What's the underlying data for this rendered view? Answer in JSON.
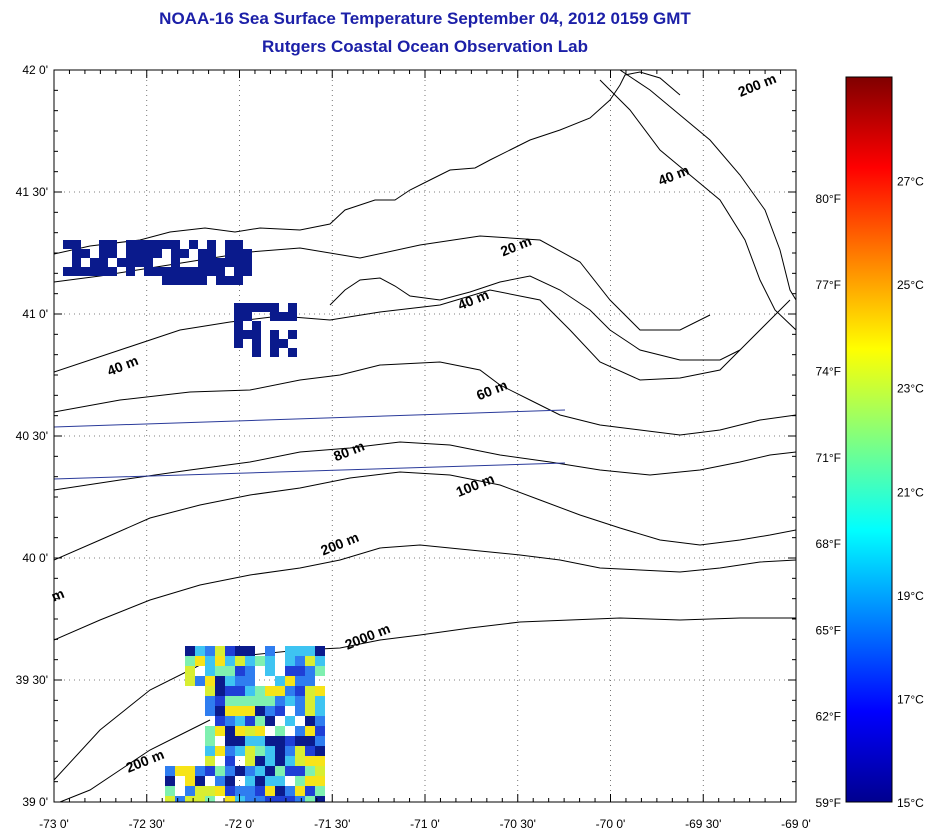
{
  "header": {
    "title": "NOAA-16 Sea Surface Temperature September 04, 2012 0159 GMT",
    "subtitle": "Rutgers Coastal Ocean Observation Lab"
  },
  "map": {
    "lon_range": [
      -73,
      -69
    ],
    "lat_range": [
      39,
      42
    ],
    "lon_ticks": [
      {
        "value": -73.0,
        "label": "-73 0'"
      },
      {
        "value": -72.5,
        "label": "-72 30'"
      },
      {
        "value": -72.0,
        "label": "-72 0'"
      },
      {
        "value": -71.5,
        "label": "-71 30'"
      },
      {
        "value": -71.0,
        "label": "-71 0'"
      },
      {
        "value": -70.5,
        "label": "-70 30'"
      },
      {
        "value": -70.0,
        "label": "-70 0'"
      },
      {
        "value": -69.5,
        "label": "-69 30'"
      },
      {
        "value": -69.0,
        "label": "-69 0'"
      }
    ],
    "lat_ticks": [
      {
        "value": 42.0,
        "label": "42 0'"
      },
      {
        "value": 41.5,
        "label": "41 30'"
      },
      {
        "value": 41.0,
        "label": "41 0'"
      },
      {
        "value": 40.5,
        "label": "40 30'"
      },
      {
        "value": 40.0,
        "label": "40 0'"
      },
      {
        "value": 39.5,
        "label": "39 30'"
      },
      {
        "value": 39.0,
        "label": "39 0'"
      }
    ],
    "grid": true,
    "bathymetry_labels": [
      {
        "text": "200 m",
        "lon": -69.2,
        "lat": 41.92
      },
      {
        "text": "40 m",
        "lon": -69.65,
        "lat": 41.55
      },
      {
        "text": "20 m",
        "lon": -70.5,
        "lat": 41.26
      },
      {
        "text": "40 m",
        "lon": -70.73,
        "lat": 41.04
      },
      {
        "text": "40 m",
        "lon": -72.62,
        "lat": 40.77
      },
      {
        "text": "60 m",
        "lon": -70.63,
        "lat": 40.67
      },
      {
        "text": "80 m",
        "lon": -71.4,
        "lat": 40.42
      },
      {
        "text": "100 m",
        "lon": -70.72,
        "lat": 40.28
      },
      {
        "text": "200 m",
        "lon": -71.45,
        "lat": 40.04
      },
      {
        "text": "2000 m",
        "lon": -71.3,
        "lat": 39.66
      },
      {
        "text": "200 m",
        "lon": -72.5,
        "lat": 39.15
      },
      {
        "text": "m",
        "lon": -72.97,
        "lat": 39.83
      }
    ],
    "sst_patch_colors": [
      "#0a1a8c",
      "#1f3fd6",
      "#2f7df0",
      "#3ec4f2",
      "#7ff0b0",
      "#d8ee32",
      "#f7e418"
    ]
  },
  "colorbar": {
    "celsius_labels": [
      {
        "value": 27,
        "label": "27°C"
      },
      {
        "value": 25,
        "label": "25°C"
      },
      {
        "value": 23,
        "label": "23°C"
      },
      {
        "value": 21,
        "label": "21°C"
      },
      {
        "value": 19,
        "label": "19°C"
      },
      {
        "value": 17,
        "label": "17°C"
      },
      {
        "value": 15,
        "label": "15°C"
      }
    ],
    "fahrenheit_labels": [
      {
        "value": 80,
        "label": "80°F"
      },
      {
        "value": 77,
        "label": "77°F"
      },
      {
        "value": 74,
        "label": "74°F"
      },
      {
        "value": 71,
        "label": "71°F"
      },
      {
        "value": 68,
        "label": "68°F"
      },
      {
        "value": 65,
        "label": "65°F"
      },
      {
        "value": 62,
        "label": "62°F"
      },
      {
        "value": 59,
        "label": "59°F"
      }
    ],
    "range_c": [
      15,
      29
    ],
    "colors": [
      "#00008f",
      "#0000ff",
      "#0080ff",
      "#00ffff",
      "#80ff80",
      "#ffff00",
      "#ff8000",
      "#ff0000",
      "#800000"
    ]
  }
}
